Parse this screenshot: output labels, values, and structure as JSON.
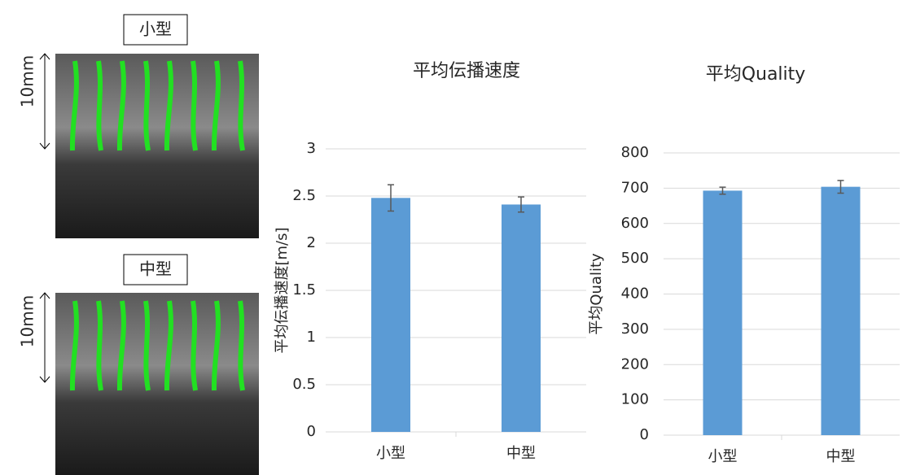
{
  "images": [
    {
      "label": "小型",
      "scale": "10mm"
    },
    {
      "label": "中型",
      "scale": "10mm"
    }
  ],
  "chart_data": [
    {
      "type": "bar",
      "title": "平均伝播速度",
      "y_label": "平均伝播速度[m/s]",
      "categories": [
        "小型",
        "中型"
      ],
      "values": [
        2.48,
        2.41
      ],
      "errors": [
        0.14,
        0.08
      ],
      "color": "#5b9bd5",
      "ylim": [
        0,
        3
      ],
      "yticks": [
        0,
        0.5,
        1,
        1.5,
        2,
        2.5,
        3
      ],
      "grid": true
    },
    {
      "type": "bar",
      "title": "平均Quality",
      "y_label": "平均Quality",
      "categories": [
        "小型",
        "中型"
      ],
      "values": [
        693,
        704
      ],
      "errors": [
        10,
        18
      ],
      "color": "#5b9bd5",
      "ylim": [
        0,
        800
      ],
      "yticks": [
        0,
        100,
        200,
        300,
        400,
        500,
        600,
        700,
        800
      ],
      "grid": true
    }
  ]
}
